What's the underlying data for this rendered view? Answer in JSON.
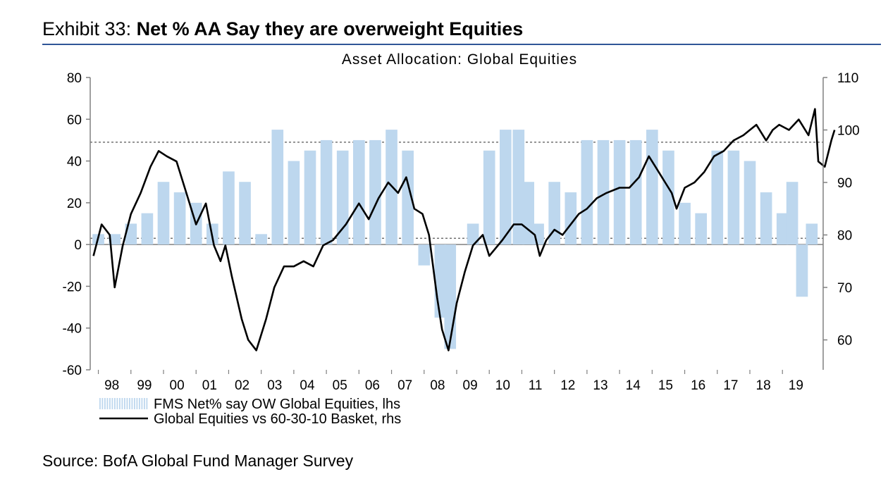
{
  "exhibit": {
    "prefix": "Exhibit 33:",
    "title": "Net % AA Say they are overweight Equities"
  },
  "source": "Source: BofA Global Fund Manager Survey",
  "colors": {
    "bars": "#bdd7ee",
    "line": "#000000",
    "rule": "#2f5597",
    "axis": "#808080"
  },
  "chart_data": {
    "type": "bar+line",
    "title": "Asset Allocation: Global Equities",
    "x_ticks": [
      "98",
      "99",
      "00",
      "01",
      "02",
      "03",
      "04",
      "05",
      "06",
      "07",
      "08",
      "09",
      "10",
      "11",
      "12",
      "13",
      "14",
      "15",
      "16",
      "17",
      "18",
      "19"
    ],
    "x_range": [
      1997.75,
      2020.25
    ],
    "y_left": {
      "range": [
        -60,
        80
      ],
      "ticks": [
        -60,
        -40,
        -20,
        0,
        20,
        40,
        60,
        80
      ]
    },
    "y_right": {
      "range": [
        54.3,
        110
      ],
      "ticks": [
        60,
        70,
        80,
        90,
        100,
        110
      ]
    },
    "reference_lines": [
      {
        "axis": "left",
        "value": 0,
        "style": "solid"
      },
      {
        "axis": "left",
        "value": 3,
        "style": "dotted"
      },
      {
        "axis": "left",
        "value": 49,
        "style": "dotted"
      }
    ],
    "series": [
      {
        "name": "FMS Net% say OW Global Equities, lhs",
        "type": "bar",
        "axis": "left",
        "x": [
          1998.0,
          1998.5,
          1999.0,
          1999.5,
          2000.0,
          2000.5,
          2001.0,
          2001.5,
          2002.0,
          2002.5,
          2003.0,
          2003.5,
          2004.0,
          2004.5,
          2005.0,
          2005.5,
          2006.0,
          2006.5,
          2007.0,
          2007.5,
          2008.0,
          2008.5,
          2008.8,
          2009.0,
          2009.5,
          2010.0,
          2010.5,
          2010.9,
          2011.2,
          2011.5,
          2012.0,
          2012.5,
          2013.0,
          2013.5,
          2014.0,
          2014.5,
          2015.0,
          2015.5,
          2016.0,
          2016.5,
          2017.0,
          2017.5,
          2018.0,
          2018.5,
          2019.0,
          2019.3,
          2019.6,
          2019.9
        ],
        "values": [
          5,
          5,
          10,
          15,
          30,
          25,
          20,
          10,
          35,
          30,
          5,
          55,
          40,
          45,
          50,
          45,
          50,
          50,
          55,
          45,
          -10,
          -35,
          -50,
          0,
          10,
          45,
          55,
          55,
          30,
          10,
          30,
          25,
          50,
          50,
          50,
          50,
          55,
          45,
          20,
          15,
          45,
          45,
          40,
          25,
          15,
          30,
          -25,
          10
        ]
      },
      {
        "name": "Global Equities vs 60-30-10 Basket, rhs",
        "type": "line",
        "axis": "right",
        "x": [
          1997.85,
          1998.1,
          1998.35,
          1998.5,
          1998.75,
          1999.0,
          1999.3,
          1999.6,
          1999.85,
          2000.1,
          2000.4,
          2000.7,
          2001.0,
          2001.3,
          2001.55,
          2001.75,
          2001.9,
          2002.1,
          2002.4,
          2002.6,
          2002.85,
          2003.15,
          2003.4,
          2003.7,
          2004.0,
          2004.3,
          2004.6,
          2004.9,
          2005.2,
          2005.6,
          2006.0,
          2006.3,
          2006.6,
          2006.9,
          2007.2,
          2007.45,
          2007.7,
          2007.95,
          2008.15,
          2008.4,
          2008.55,
          2008.75,
          2009.0,
          2009.25,
          2009.5,
          2009.8,
          2010.0,
          2010.4,
          2010.75,
          2011.0,
          2011.4,
          2011.55,
          2011.75,
          2012.0,
          2012.25,
          2012.5,
          2012.75,
          2013.0,
          2013.3,
          2013.6,
          2014.0,
          2014.3,
          2014.6,
          2014.9,
          2015.1,
          2015.4,
          2015.6,
          2015.75,
          2016.0,
          2016.3,
          2016.6,
          2016.9,
          2017.2,
          2017.5,
          2017.8,
          2018.0,
          2018.2,
          2018.5,
          2018.7,
          2018.9,
          2019.2,
          2019.5,
          2019.8,
          2020.0,
          2020.1,
          2020.3,
          2020.5,
          2020.6
        ],
        "values": [
          76,
          82,
          80,
          70,
          78,
          84,
          88,
          93,
          96,
          95,
          94,
          88,
          82,
          86,
          78,
          75,
          78,
          72,
          64,
          60,
          58,
          64,
          70,
          74,
          74,
          75,
          74,
          78,
          79,
          82,
          86,
          83,
          87,
          90,
          88,
          91,
          85,
          84,
          80,
          68,
          62,
          58,
          67,
          73,
          78,
          80,
          76,
          79,
          82,
          82,
          80,
          76,
          79,
          81,
          80,
          82,
          84,
          85,
          87,
          88,
          89,
          89,
          91,
          95,
          93,
          90,
          88,
          85,
          89,
          90,
          92,
          95,
          96,
          98,
          99,
          100,
          101,
          98,
          100,
          101,
          100,
          102,
          99,
          104,
          94,
          93,
          98,
          100
        ]
      }
    ]
  },
  "legend": [
    {
      "label": "FMS Net% say OW Global Equities, lhs",
      "swatch": "bars"
    },
    {
      "label": "Global Equities vs 60-30-10 Basket, rhs",
      "swatch": "line"
    }
  ]
}
